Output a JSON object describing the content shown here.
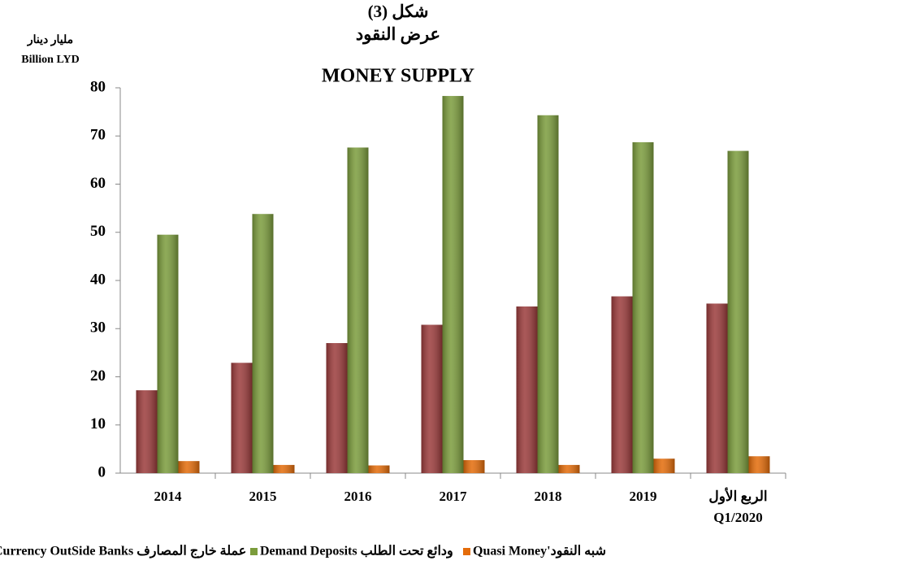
{
  "chart_data": {
    "type": "bar",
    "title": [
      "شكل (3)",
      "عرض النقود",
      "MONEY SUPPLY"
    ],
    "ylabel": [
      "مليار دينار",
      "Billion LYD"
    ],
    "categories": [
      "2014",
      "2015",
      "2016",
      "2017",
      "2018",
      "2019",
      "الربع الأول\nQ1/2020"
    ],
    "series": [
      {
        "name": "Currency OutSide Banks عملة خارج المصارف",
        "color": "#9b3b3b",
        "values": [
          17.2,
          22.9,
          27.0,
          30.8,
          34.6,
          36.7,
          35.2
        ]
      },
      {
        "name": "Demand Deposits ودائع تحت الطلب",
        "color": "#7b9c3c",
        "values": [
          49.5,
          53.8,
          67.6,
          78.3,
          74.3,
          68.7,
          66.9
        ]
      },
      {
        "name": "Quasi Money'شبه النقود",
        "color": "#e46c0a",
        "values": [
          2.5,
          1.7,
          1.6,
          2.7,
          1.7,
          3.0,
          3.5
        ]
      }
    ],
    "ylim": [
      0,
      80
    ],
    "yticks": [
      0,
      10,
      20,
      30,
      40,
      50,
      60,
      70,
      80
    ],
    "grid": false
  }
}
